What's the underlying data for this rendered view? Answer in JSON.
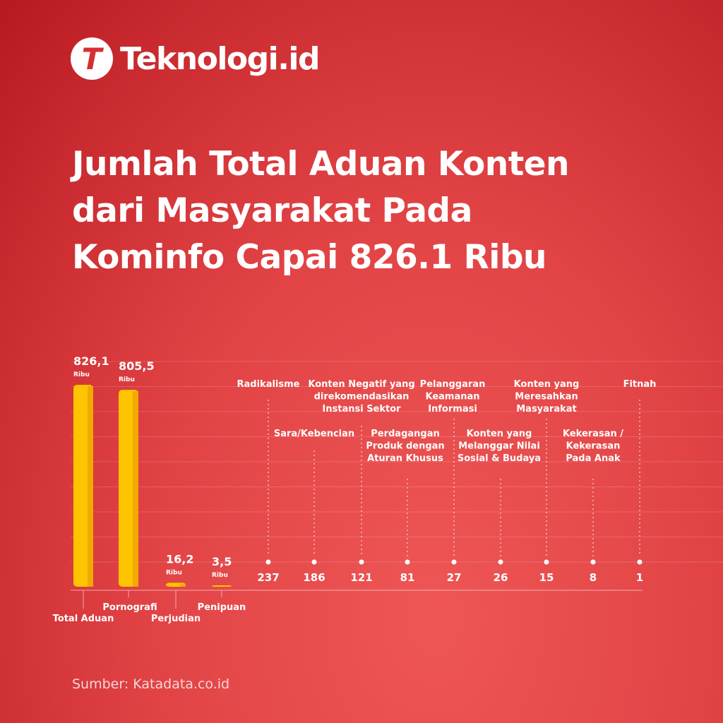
{
  "brand": {
    "logo_letter": "T",
    "name": "Teknologi.id"
  },
  "title_lines": [
    "Jumlah Total Aduan Konten",
    "dari Masyarakat Pada",
    "Kominfo Capai 826.1 Ribu"
  ],
  "source": "Sumber: Katadata.co.id",
  "colors": {
    "background": "#e24446",
    "bar": "#ffc400",
    "bar_edge": "#f2a900",
    "text": "#ffffff"
  },
  "chart_data": {
    "type": "bar",
    "unit_label": "Ribu",
    "bars": [
      {
        "category": "Total Aduan",
        "value": 826.1,
        "label": "826,1"
      },
      {
        "category": "Pornografi",
        "value": 805.5,
        "label": "805,5"
      },
      {
        "category": "Perjudian",
        "value": 16.2,
        "label": "16,2"
      },
      {
        "category": "Penipuan",
        "value": 3.5,
        "label": "3,5"
      }
    ],
    "points": [
      {
        "category": "Radikalisme",
        "value": 237,
        "label": "237"
      },
      {
        "category": "Sara/Kebencian",
        "value": 186,
        "label": "186"
      },
      {
        "category": "Konten Negatif yang direkomendasikan Instansi Sektor",
        "value": 121,
        "label": "121"
      },
      {
        "category": "Perdagangan Produk dengan Aturan Khusus",
        "value": 81,
        "label": "81"
      },
      {
        "category": "Pelanggaran Keamanan Informasi",
        "value": 27,
        "label": "27"
      },
      {
        "category": "Konten yang Melanggar Nilai Sosial & Budaya",
        "value": 26,
        "label": "26"
      },
      {
        "category": "Konten yang Meresahkan Masyarakat",
        "value": 15,
        "label": "15"
      },
      {
        "category": "Kekerasan / Kekerasan Pada Anak",
        "value": 8,
        "label": "8"
      },
      {
        "category": "Fitnah",
        "value": 1,
        "label": "1"
      }
    ],
    "grid": true
  }
}
